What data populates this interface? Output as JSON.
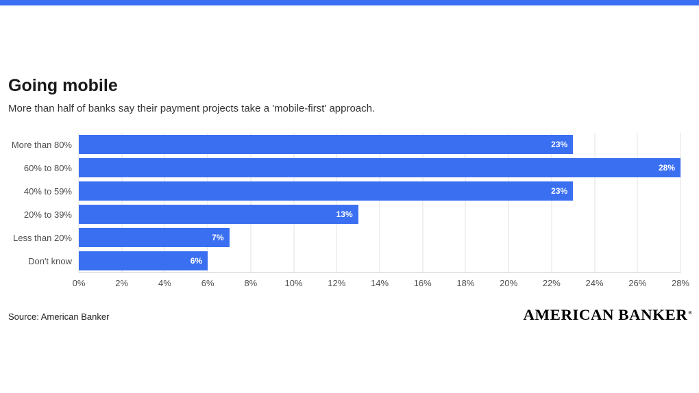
{
  "page": {
    "accent_color": "#3a6ff1",
    "background": "#ffffff"
  },
  "header": {
    "title": "Going mobile",
    "subtitle": "More than half of banks say their payment projects take a 'mobile-first' approach."
  },
  "chart_data": {
    "type": "bar",
    "orientation": "horizontal",
    "title": "Going mobile",
    "subtitle": "More than half of banks say their payment projects take a 'mobile-first' approach.",
    "categories": [
      "More than 80%",
      "60% to 80%",
      "40% to 59%",
      "20% to 39%",
      "Less than 20%",
      "Don't know"
    ],
    "values": [
      23,
      28,
      23,
      13,
      7,
      6
    ],
    "value_labels": [
      "23%",
      "28%",
      "23%",
      "13%",
      "7%",
      "6%"
    ],
    "xlim": [
      0,
      28
    ],
    "x_tick_values": [
      0,
      2,
      4,
      6,
      8,
      10,
      12,
      14,
      16,
      18,
      20,
      22,
      24,
      26,
      28
    ],
    "x_ticks": [
      "0%",
      "2%",
      "4%",
      "6%",
      "8%",
      "10%",
      "12%",
      "14%",
      "16%",
      "18%",
      "20%",
      "22%",
      "24%",
      "26%",
      "28%"
    ],
    "bar_color": "#3a6ff1",
    "grid": true,
    "legend": false,
    "xlabel": "",
    "ylabel": ""
  },
  "footer": {
    "source": "Source: American Banker",
    "logo": "AMERICAN BANKER",
    "logo_mark": "®"
  }
}
